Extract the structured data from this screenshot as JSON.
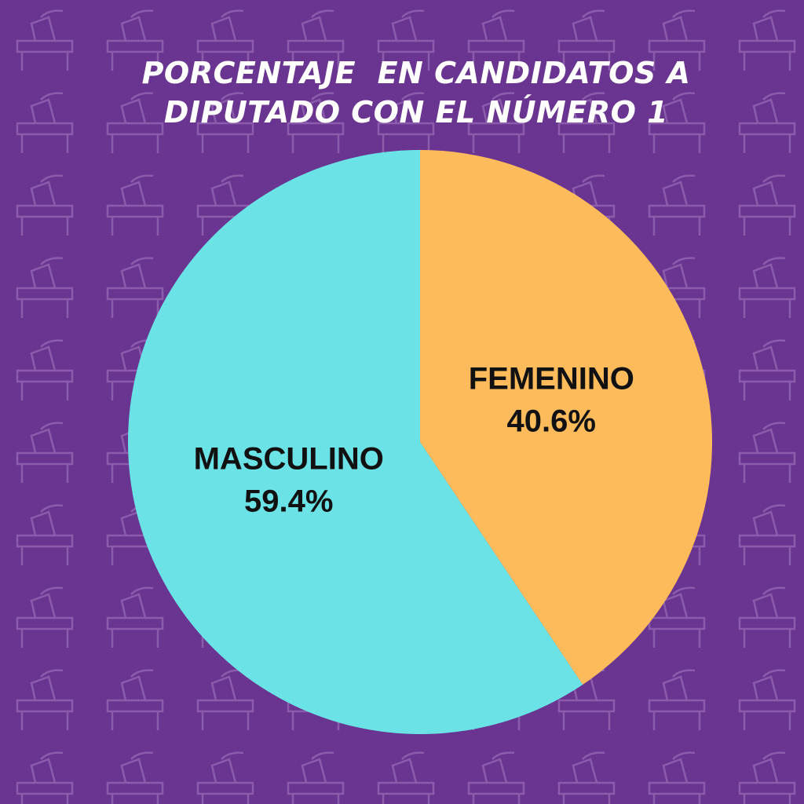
{
  "chart_data": {
    "type": "pie",
    "title": "PORCENTAJE  EN CANDIDATOS A DIPUTADO CON EL NÚMERO 1",
    "categories": [
      "FEMENINO",
      "MASCULINO"
    ],
    "values": [
      40.6,
      59.4
    ],
    "value_labels": [
      "40.6%",
      "59.4%"
    ],
    "colors": [
      "#fdbb5c",
      "#6be3e6"
    ]
  }
}
